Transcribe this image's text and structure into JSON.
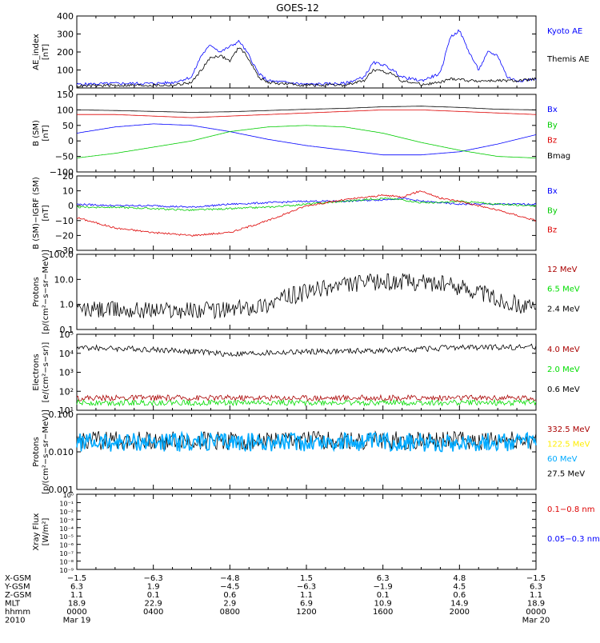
{
  "title": "GOES-12",
  "panels": [
    {
      "id": "ae",
      "ylabel": [
        "AE_index",
        "[nT]"
      ],
      "yticks": [
        "0",
        "100",
        "200",
        "300",
        "400"
      ],
      "legend": [
        {
          "text": "Kyoto AE",
          "color": "#0000ff"
        },
        {
          "text": "Themis AE",
          "color": "#000000"
        }
      ]
    },
    {
      "id": "bsm",
      "ylabel": [
        "B (SM)",
        "[nT]"
      ],
      "yticks": [
        "−100",
        "−50",
        "0",
        "50",
        "100",
        "150"
      ],
      "legend": [
        {
          "text": "Bx",
          "color": "#0000ff"
        },
        {
          "text": "By",
          "color": "#00cc00"
        },
        {
          "text": "Bz",
          "color": "#dd0000"
        },
        {
          "text": "Bmag",
          "color": "#000000"
        }
      ]
    },
    {
      "id": "bigrf",
      "ylabel": [
        "B (SM)−IGRF (SM)",
        "[nT]"
      ],
      "yticks": [
        "−30",
        "−20",
        "−10",
        "0",
        "10",
        "20"
      ],
      "legend": [
        {
          "text": "Bx",
          "color": "#0000ff"
        },
        {
          "text": "By",
          "color": "#00cc00"
        },
        {
          "text": "Bz",
          "color": "#dd0000"
        }
      ]
    },
    {
      "id": "protons_low",
      "ylabel": [
        "Protons",
        "[p/(cm²−s−sr−MeV)]"
      ],
      "yticks": [
        "0.1",
        "1.0",
        "10.0",
        "100.0"
      ],
      "legend": [
        {
          "text": "12 MeV",
          "color": "#aa0000"
        },
        {
          "text": "6.5 MeV",
          "color": "#00dd00"
        },
        {
          "text": "2.4 MeV",
          "color": "#000000"
        }
      ]
    },
    {
      "id": "electrons",
      "ylabel": [
        "Electrons",
        "[e/(cm²−s−sr)]"
      ],
      "yticks": [
        "10¹",
        "10²",
        "10³",
        "10⁴",
        "10⁵"
      ],
      "legend": [
        {
          "text": "4.0 MeV",
          "color": "#aa0000"
        },
        {
          "text": "2.0 MeV",
          "color": "#00dd00"
        },
        {
          "text": "0.6 MeV",
          "color": "#000000"
        }
      ]
    },
    {
      "id": "protons_high",
      "ylabel": [
        "Protons",
        "[p/(cm²−s−sr−MeV)]"
      ],
      "yticks": [
        "0.001",
        "0.010",
        "0.100"
      ],
      "legend": [
        {
          "text": "332.5 MeV",
          "color": "#aa0000"
        },
        {
          "text": "122.5 MeV",
          "color": "#ffee00"
        },
        {
          "text": "60 MeV",
          "color": "#00aaff"
        },
        {
          "text": "27.5 MeV",
          "color": "#000000"
        }
      ]
    },
    {
      "id": "xray",
      "ylabel": [
        "Xray Flux",
        "[W/m²]"
      ],
      "yticks": [
        "10⁻⁹",
        "10⁻⁸",
        "10⁻⁷",
        "10⁻⁶",
        "10⁻⁵",
        "10⁻⁴",
        "10⁻³",
        "10⁻²",
        "10⁻¹",
        "10⁰"
      ],
      "legend": [
        {
          "text": "0.1−0.8 nm",
          "color": "#dd0000"
        },
        {
          "text": "0.05−0.3 nm",
          "color": "#0000ff"
        }
      ]
    }
  ],
  "axis_table": {
    "rows": [
      {
        "label": "X-GSM",
        "values": [
          "−1.5",
          "−6.3",
          "−4.8",
          "1.5",
          "6.3",
          "4.8",
          "−1.5"
        ]
      },
      {
        "label": "Y-GSM",
        "values": [
          "6.3",
          "1.9",
          "−4.5",
          "−6.3",
          "−1.9",
          "4.5",
          "6.3"
        ]
      },
      {
        "label": "Z-GSM",
        "values": [
          "1.1",
          "0.1",
          "0.6",
          "1.1",
          "0.1",
          "0.6",
          "1.1"
        ]
      },
      {
        "label": "MLT",
        "values": [
          "18.9",
          "22.9",
          "2.9",
          "6.9",
          "10.9",
          "14.9",
          "18.9"
        ]
      },
      {
        "label": "hhmm",
        "values": [
          "0000",
          "0400",
          "0800",
          "1200",
          "1600",
          "2000",
          "0000"
        ]
      },
      {
        "label": "2010",
        "values": [
          "Mar 19",
          "",
          "",
          "",
          "",
          "",
          "Mar 20"
        ]
      }
    ]
  },
  "chart_data": [
    {
      "type": "line",
      "panel": "ae",
      "x_hours": [
        0,
        2,
        4,
        5,
        6,
        6.5,
        7,
        7.5,
        8,
        8.5,
        9,
        9.5,
        10,
        12,
        14,
        15,
        15.5,
        16,
        16.5,
        17,
        18,
        19,
        19.5,
        20,
        20.5,
        21,
        21.5,
        22,
        22.5,
        23,
        24
      ],
      "series": [
        {
          "name": "Kyoto AE",
          "values": [
            20,
            25,
            25,
            30,
            60,
            180,
            240,
            200,
            230,
            260,
            180,
            80,
            40,
            20,
            25,
            60,
            140,
            130,
            100,
            60,
            40,
            80,
            280,
            320,
            200,
            100,
            200,
            180,
            60,
            40,
            50
          ]
        },
        {
          "name": "Themis AE",
          "values": [
            10,
            15,
            15,
            15,
            30,
            100,
            170,
            180,
            150,
            230,
            160,
            60,
            30,
            15,
            15,
            40,
            100,
            90,
            80,
            40,
            20,
            30,
            50,
            50,
            40,
            40,
            40,
            40,
            40,
            40,
            50
          ]
        }
      ],
      "ylim": [
        0,
        400
      ]
    },
    {
      "type": "line",
      "panel": "bsm",
      "x_hours": [
        0,
        2,
        4,
        6,
        8,
        10,
        12,
        14,
        16,
        18,
        20,
        22,
        24
      ],
      "series": [
        {
          "name": "Bx",
          "values": [
            25,
            45,
            55,
            50,
            30,
            5,
            -15,
            -30,
            -45,
            -45,
            -35,
            -10,
            20
          ]
        },
        {
          "name": "By",
          "values": [
            -55,
            -40,
            -20,
            0,
            30,
            45,
            50,
            45,
            25,
            -5,
            -30,
            -50,
            -55
          ]
        },
        {
          "name": "Bz",
          "values": [
            85,
            85,
            80,
            75,
            80,
            85,
            90,
            95,
            100,
            100,
            95,
            90,
            85
          ]
        },
        {
          "name": "Bmag",
          "values": [
            100,
            98,
            95,
            92,
            94,
            98,
            102,
            105,
            110,
            112,
            108,
            102,
            100
          ]
        }
      ],
      "ylim": [
        -100,
        150
      ]
    },
    {
      "type": "line",
      "panel": "bigrf",
      "x_hours": [
        0,
        2,
        4,
        6,
        8,
        10,
        12,
        14,
        16,
        17,
        18,
        19,
        20,
        22,
        24
      ],
      "series": [
        {
          "name": "Bx",
          "values": [
            1,
            0,
            0,
            -1,
            1,
            2,
            3,
            3,
            4,
            5,
            3,
            2,
            1,
            1,
            1
          ]
        },
        {
          "name": "By",
          "values": [
            -1,
            -1,
            -2,
            -3,
            -2,
            -1,
            1,
            3,
            5,
            4,
            2,
            2,
            3,
            1,
            0
          ]
        },
        {
          "name": "Bz",
          "values": [
            -8,
            -15,
            -18,
            -20,
            -18,
            -10,
            0,
            4,
            7,
            6,
            10,
            5,
            3,
            -3,
            -10
          ]
        }
      ],
      "ylim": [
        -30,
        20
      ]
    },
    {
      "type": "line",
      "panel": "protons_low",
      "x_hours": [
        0,
        4,
        8,
        10,
        12,
        14,
        16,
        18,
        20,
        22,
        24
      ],
      "series": [
        {
          "name": "2.4 MeV",
          "values": [
            0.6,
            0.6,
            0.6,
            1,
            3,
            6,
            8,
            8,
            5,
            1.5,
            0.6
          ]
        }
      ],
      "yscale": "log",
      "ylim": [
        0.1,
        100
      ]
    },
    {
      "type": "line",
      "panel": "electrons",
      "x_hours": [
        0,
        4,
        8,
        12,
        16,
        20,
        24
      ],
      "series": [
        {
          "name": "0.6 MeV",
          "values": [
            20000,
            16000,
            9000,
            12000,
            14000,
            20000,
            22000
          ]
        },
        {
          "name": "4.0 MeV",
          "values": [
            45,
            45,
            45,
            45,
            45,
            45,
            45
          ]
        },
        {
          "name": "2.0 MeV",
          "values": [
            25,
            25,
            25,
            25,
            25,
            25,
            25
          ]
        }
      ],
      "yscale": "log",
      "ylim": [
        10,
        100000
      ]
    },
    {
      "type": "line",
      "panel": "protons_high",
      "x_hours": [
        0,
        24
      ],
      "series": [
        {
          "name": "27.5 MeV",
          "values": [
            0.02,
            0.02
          ]
        },
        {
          "name": "60 MeV",
          "values": [
            0.018,
            0.018
          ]
        }
      ],
      "yscale": "log",
      "ylim": [
        0.001,
        0.1
      ]
    }
  ]
}
